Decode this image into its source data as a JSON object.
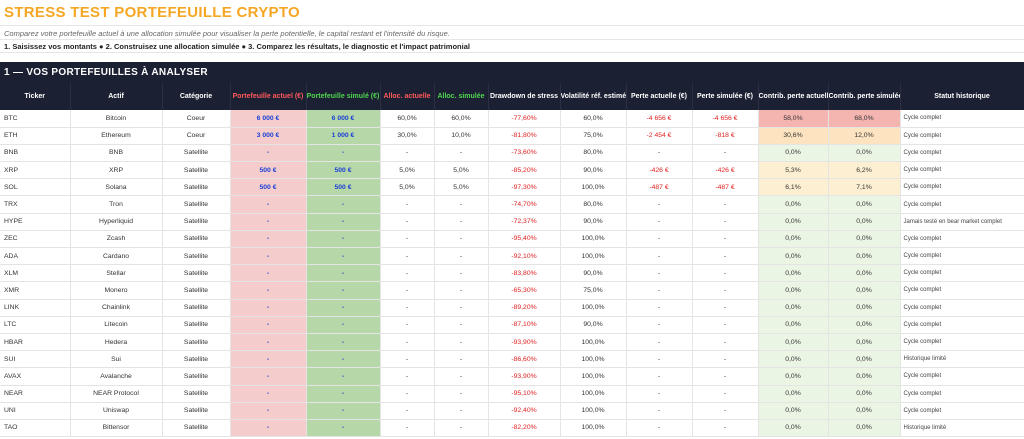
{
  "title": "STRESS TEST PORTEFEUILLE CRYPTO",
  "subtitle": "Comparez votre portefeuille actuel à une allocation simulée pour visualiser la perte potentielle, le capital restant et l'intensité du risque.",
  "steps": "1. Saisissez vos montants  ●  2. Construisez une allocation simulée  ●  3. Comparez les résultats, le diagnostic et l'impact patrimonial",
  "section_title": "1 — VOS PORTEFEUILLES À ANALYSER",
  "colors": {
    "header_bg": "#1c2033",
    "title": "#f5a623",
    "neg": "#e02020",
    "input_blue": "#1a3fd6"
  },
  "headers": [
    "Ticker",
    "Actif",
    "Catégorie",
    "Portefeuille actuel (€)",
    "Portefeuille simulé (€)",
    "Alloc. actuelle",
    "Alloc. simulée",
    "Drawdown de stress",
    "Volatilité réf. estimée",
    "Perte actuelle (€)",
    "Perte simulée (€)",
    "Contrib. perte actuelle",
    "Contrib. perte simulée",
    "Statut historique"
  ],
  "rows": [
    {
      "ticker": "BTC",
      "asset": "Bitcoin",
      "cat": "Coeur",
      "pa": "6 000 €",
      "ps": "6 000 €",
      "aa": "60,0%",
      "as": "60,0%",
      "dd": "-77,60%",
      "vol": "60,0%",
      "la": "-4 656 €",
      "ls": "-4 656 €",
      "ca": "58,0%",
      "cs": "68,0%",
      "status": "Cycle complet",
      "heat": "hi"
    },
    {
      "ticker": "ETH",
      "asset": "Ethereum",
      "cat": "Coeur",
      "pa": "3 000 €",
      "ps": "1 000 €",
      "aa": "30,0%",
      "as": "10,0%",
      "dd": "-81,80%",
      "vol": "75,0%",
      "la": "-2 454 €",
      "ls": "-818 €",
      "ca": "30,6%",
      "cs": "12,0%",
      "status": "Cycle complet",
      "heat": "mid"
    },
    {
      "ticker": "BNB",
      "asset": "BNB",
      "cat": "Satellite",
      "pa": "-",
      "ps": "-",
      "aa": "-",
      "as": "-",
      "dd": "-73,60%",
      "vol": "80,0%",
      "la": "-",
      "ls": "-",
      "ca": "0,0%",
      "cs": "0,0%",
      "status": "Cycle complet",
      "heat": ""
    },
    {
      "ticker": "XRP",
      "asset": "XRP",
      "cat": "Satellite",
      "pa": "500 €",
      "ps": "500 €",
      "aa": "5,0%",
      "as": "5,0%",
      "dd": "-85,20%",
      "vol": "90,0%",
      "la": "-426 €",
      "ls": "-426 €",
      "ca": "5,3%",
      "cs": "6,2%",
      "status": "Cycle complet",
      "heat": "low"
    },
    {
      "ticker": "SOL",
      "asset": "Solana",
      "cat": "Satellite",
      "pa": "500 €",
      "ps": "500 €",
      "aa": "5,0%",
      "as": "5,0%",
      "dd": "-97,30%",
      "vol": "100,0%",
      "la": "-487 €",
      "ls": "-487 €",
      "ca": "6,1%",
      "cs": "7,1%",
      "status": "Cycle complet",
      "heat": "low"
    },
    {
      "ticker": "TRX",
      "asset": "Tron",
      "cat": "Satellite",
      "pa": "-",
      "ps": "-",
      "aa": "-",
      "as": "-",
      "dd": "-74,70%",
      "vol": "80,0%",
      "la": "-",
      "ls": "-",
      "ca": "0,0%",
      "cs": "0,0%",
      "status": "Cycle complet",
      "heat": ""
    },
    {
      "ticker": "HYPE",
      "asset": "Hyperliquid",
      "cat": "Satellite",
      "pa": "-",
      "ps": "-",
      "aa": "-",
      "as": "-",
      "dd": "-72,37%",
      "vol": "90,0%",
      "la": "-",
      "ls": "-",
      "ca": "0,0%",
      "cs": "0,0%",
      "status": "Jamais testé en bear market complet",
      "heat": ""
    },
    {
      "ticker": "ZEC",
      "asset": "Zcash",
      "cat": "Satellite",
      "pa": "-",
      "ps": "-",
      "aa": "-",
      "as": "-",
      "dd": "-95,40%",
      "vol": "100,0%",
      "la": "-",
      "ls": "-",
      "ca": "0,0%",
      "cs": "0,0%",
      "status": "Cycle complet",
      "heat": ""
    },
    {
      "ticker": "ADA",
      "asset": "Cardano",
      "cat": "Satellite",
      "pa": "-",
      "ps": "-",
      "aa": "-",
      "as": "-",
      "dd": "-92,10%",
      "vol": "100,0%",
      "la": "-",
      "ls": "-",
      "ca": "0,0%",
      "cs": "0,0%",
      "status": "Cycle complet",
      "heat": ""
    },
    {
      "ticker": "XLM",
      "asset": "Stellar",
      "cat": "Satellite",
      "pa": "-",
      "ps": "-",
      "aa": "-",
      "as": "-",
      "dd": "-83,80%",
      "vol": "90,0%",
      "la": "-",
      "ls": "-",
      "ca": "0,0%",
      "cs": "0,0%",
      "status": "Cycle complet",
      "heat": ""
    },
    {
      "ticker": "XMR",
      "asset": "Monero",
      "cat": "Satellite",
      "pa": "-",
      "ps": "-",
      "aa": "-",
      "as": "-",
      "dd": "-65,30%",
      "vol": "75,0%",
      "la": "-",
      "ls": "-",
      "ca": "0,0%",
      "cs": "0,0%",
      "status": "Cycle complet",
      "heat": ""
    },
    {
      "ticker": "LINK",
      "asset": "Chainlink",
      "cat": "Satellite",
      "pa": "-",
      "ps": "-",
      "aa": "-",
      "as": "-",
      "dd": "-89,20%",
      "vol": "100,0%",
      "la": "-",
      "ls": "-",
      "ca": "0,0%",
      "cs": "0,0%",
      "status": "Cycle complet",
      "heat": ""
    },
    {
      "ticker": "LTC",
      "asset": "Litecoin",
      "cat": "Satellite",
      "pa": "-",
      "ps": "-",
      "aa": "-",
      "as": "-",
      "dd": "-87,10%",
      "vol": "90,0%",
      "la": "-",
      "ls": "-",
      "ca": "0,0%",
      "cs": "0,0%",
      "status": "Cycle complet",
      "heat": ""
    },
    {
      "ticker": "HBAR",
      "asset": "Hedera",
      "cat": "Satellite",
      "pa": "-",
      "ps": "-",
      "aa": "-",
      "as": "-",
      "dd": "-93,90%",
      "vol": "100,0%",
      "la": "-",
      "ls": "-",
      "ca": "0,0%",
      "cs": "0,0%",
      "status": "Cycle complet",
      "heat": ""
    },
    {
      "ticker": "SUI",
      "asset": "Sui",
      "cat": "Satellite",
      "pa": "-",
      "ps": "-",
      "aa": "-",
      "as": "-",
      "dd": "-86,60%",
      "vol": "100,0%",
      "la": "-",
      "ls": "-",
      "ca": "0,0%",
      "cs": "0,0%",
      "status": "Historique limité",
      "heat": ""
    },
    {
      "ticker": "AVAX",
      "asset": "Avalanche",
      "cat": "Satellite",
      "pa": "-",
      "ps": "-",
      "aa": "-",
      "as": "-",
      "dd": "-93,90%",
      "vol": "100,0%",
      "la": "-",
      "ls": "-",
      "ca": "0,0%",
      "cs": "0,0%",
      "status": "Cycle complet",
      "heat": ""
    },
    {
      "ticker": "NEAR",
      "asset": "NEAR Protocol",
      "cat": "Satellite",
      "pa": "-",
      "ps": "-",
      "aa": "-",
      "as": "-",
      "dd": "-95,10%",
      "vol": "100,0%",
      "la": "-",
      "ls": "-",
      "ca": "0,0%",
      "cs": "0,0%",
      "status": "Cycle complet",
      "heat": ""
    },
    {
      "ticker": "UNI",
      "asset": "Uniswap",
      "cat": "Satellite",
      "pa": "-",
      "ps": "-",
      "aa": "-",
      "as": "-",
      "dd": "-92,40%",
      "vol": "100,0%",
      "la": "-",
      "ls": "-",
      "ca": "0,0%",
      "cs": "0,0%",
      "status": "Cycle complet",
      "heat": ""
    },
    {
      "ticker": "TAO",
      "asset": "Bittensor",
      "cat": "Satellite",
      "pa": "-",
      "ps": "-",
      "aa": "-",
      "as": "-",
      "dd": "-82,20%",
      "vol": "100,0%",
      "la": "-",
      "ls": "-",
      "ca": "0,0%",
      "cs": "0,0%",
      "status": "Historique limité",
      "heat": ""
    }
  ]
}
